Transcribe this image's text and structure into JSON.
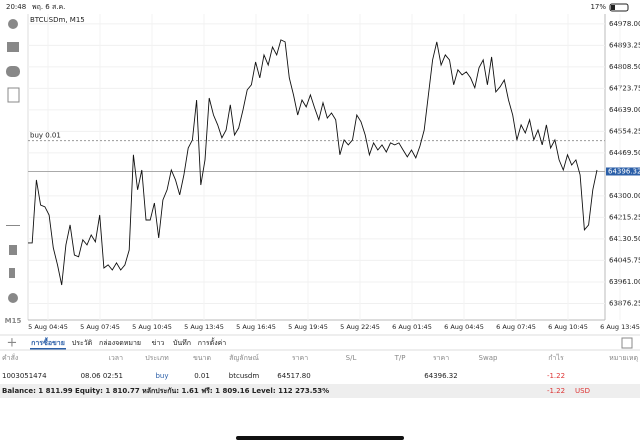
{
  "status_bar": {
    "time": "20:48",
    "date": "พฤ. 6 ส.ค.",
    "battery": "17%"
  },
  "toolbar": {
    "timeframe": "M15"
  },
  "chart": {
    "symbol": "BTCUSDm, M15",
    "buy_label": "buy 0.01",
    "buy_price": 64517.8,
    "current_price": 64396.32,
    "ylim": [
      63811,
      65017
    ],
    "yticks": [
      {
        "value": 64978,
        "label": "64978.00"
      },
      64893.25,
      {
        "value": 64808.5,
        "label": "64808.50"
      },
      64723.75,
      {
        "value": 64639,
        "label": "64639.00"
      },
      64554.25,
      {
        "value": 64469.5,
        "label": "64469.50"
      },
      {
        "value": 64300,
        "label": "64300.00"
      },
      64215.25,
      {
        "value": 64130.5,
        "label": "64130.50"
      },
      64045.75,
      {
        "value": 63961,
        "label": "63961.00"
      },
      63876.25
    ],
    "xlabels": [
      "5 Aug 04:45",
      "5 Aug 07:45",
      "5 Aug 10:45",
      "5 Aug 13:45",
      "5 Aug 16:45",
      "5 Aug 19:45",
      "5 Aug 22:45",
      "6 Aug 01:45",
      "6 Aug 04:45",
      "6 Aug 07:45",
      "6 Aug 10:45",
      "6 Aug 13:45"
    ],
    "values": [
      64115,
      64115,
      64363,
      64264,
      64257,
      64225,
      64095,
      64028,
      63949,
      64107,
      64186,
      64067,
      64060,
      64127,
      64107,
      64146,
      64119,
      64225,
      64016,
      64028,
      64008,
      64036,
      64008,
      64028,
      64087,
      64462,
      64324,
      64402,
      64205,
      64205,
      64272,
      64134,
      64284,
      64324,
      64402,
      64363,
      64304,
      64383,
      64489,
      64521,
      64678,
      64343,
      64442,
      64686,
      64619,
      64580,
      64529,
      64560,
      64659,
      64540,
      64568,
      64639,
      64718,
      64738,
      64828,
      64765,
      64856,
      64816,
      64887,
      64856,
      64915,
      64907,
      64765,
      64698,
      64619,
      64678,
      64651,
      64698,
      64647,
      64600,
      64667,
      64607,
      64627,
      64600,
      64462,
      64521,
      64501,
      64521,
      64619,
      64592,
      64540,
      64462,
      64509,
      64481,
      64501,
      64473,
      64509,
      64501,
      64509,
      64481,
      64454,
      64481,
      64450,
      64497,
      64560,
      64698,
      64836,
      64907,
      64816,
      64856,
      64836,
      64738,
      64797,
      64777,
      64789,
      64765,
      64726,
      64805,
      64836,
      64738,
      64848,
      64710,
      64730,
      64757,
      64678,
      64619,
      64521,
      64580,
      64548,
      64600,
      64521,
      64560,
      64501,
      64580,
      64489,
      64521,
      64442,
      64402,
      64462,
      64422,
      64442,
      64383,
      64166,
      64186,
      64324,
      64402
    ]
  },
  "tabs": [
    "การซื้อขาย",
    "ประวัติ",
    "กล่องจดหมาย",
    "ข่าว",
    "บันทึก",
    "การตั้งค่า"
  ],
  "table": {
    "headers": [
      "คำสั่ง",
      "เวลา",
      "ประเภท",
      "ขนาด",
      "สัญลักษณ์",
      "ราคา",
      "S/L",
      "T/P",
      "ราคา",
      "Swap",
      "กำไร",
      "หมายเหตุ"
    ],
    "rows": [
      {
        "order": "1003051474",
        "time": "08.06 02:51",
        "type": "buy",
        "volume": "0.01",
        "symbol": "btcusdm",
        "price": "64517.80",
        "current_price": "64396.32",
        "profit": "-1.22"
      }
    ]
  },
  "footer": {
    "summary": "Balance: 1 811.99 Equity: 1 810.77 หลักประกัน: 1.61 ฟรี: 1 809.16 Level: 112 273.53%",
    "profit": "-1.22",
    "currency": "USD"
  }
}
